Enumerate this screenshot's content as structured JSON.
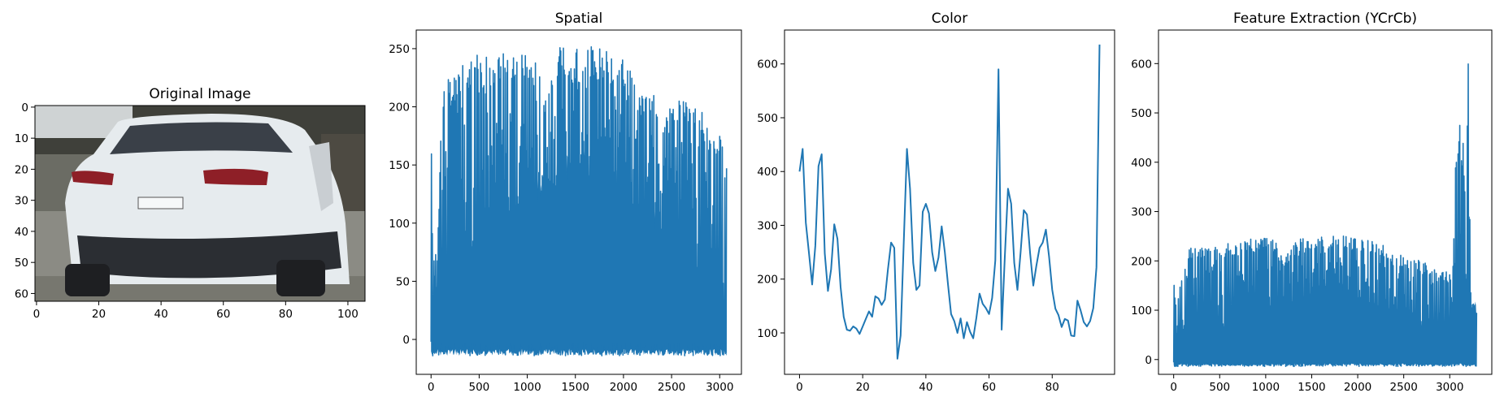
{
  "figure": {
    "line_color": "#1f77b4",
    "axes_color": "#000000",
    "background": "#ffffff"
  },
  "chart_data": [
    {
      "type": "image",
      "title": "Original Image",
      "image_description": "rear view of a white sedan on a road with a dark curb in the background",
      "xlim": [
        -0.5,
        105.5
      ],
      "ylim": [
        62.5,
        -0.5
      ],
      "xticks": [
        0,
        20,
        40,
        60,
        80,
        100
      ],
      "yticks": [
        0,
        10,
        20,
        30,
        40,
        50,
        60
      ],
      "grid": false
    },
    {
      "type": "line",
      "title": "Spatial",
      "xlim": [
        -154,
        3226
      ],
      "ylim": [
        -30,
        266
      ],
      "xticks": [
        0,
        500,
        1000,
        1500,
        2000,
        2500,
        3000
      ],
      "yticks": [
        0,
        50,
        100,
        150,
        200,
        250
      ],
      "series_x_range": [
        0,
        3071
      ],
      "series_min": -20,
      "series_max": 252,
      "typical_floor": [
        -15,
        10
      ],
      "grid": false,
      "note_values": "3072 dense points; envelope sampled below",
      "envelope": {
        "x": [
          0,
          30,
          60,
          120,
          200,
          300,
          400,
          500,
          600,
          700,
          800,
          900,
          1000,
          1100,
          1200,
          1300,
          1400,
          1500,
          1600,
          1700,
          1800,
          1900,
          2000,
          2100,
          2200,
          2300,
          2400,
          2500,
          2600,
          2700,
          2800,
          2900,
          3000,
          3071
        ],
        "high": [
          168,
          120,
          60,
          222,
          225,
          240,
          243,
          245,
          244,
          245,
          248,
          250,
          250,
          245,
          205,
          250,
          252,
          252,
          252,
          252,
          252,
          245,
          240,
          228,
          215,
          212,
          198,
          200,
          212,
          205,
          200,
          180,
          177,
          148
        ],
        "body": [
          30,
          25,
          40,
          45,
          55,
          60,
          70,
          80,
          90,
          95,
          100,
          105,
          110,
          115,
          120,
          130,
          135,
          140,
          140,
          140,
          135,
          130,
          120,
          110,
          100,
          95,
          85,
          75,
          65,
          55,
          45,
          35,
          20,
          10
        ]
      }
    },
    {
      "type": "line",
      "title": "Color",
      "xlim": [
        -4.75,
        99.75
      ],
      "ylim": [
        23,
        663
      ],
      "xticks": [
        0,
        20,
        40,
        60,
        80
      ],
      "yticks": [
        100,
        200,
        300,
        400,
        500,
        600
      ],
      "grid": false,
      "x": [
        0,
        1,
        2,
        3,
        4,
        5,
        6,
        7,
        8,
        9,
        10,
        11,
        12,
        13,
        14,
        15,
        16,
        17,
        18,
        19,
        20,
        21,
        22,
        23,
        24,
        25,
        26,
        27,
        28,
        29,
        30,
        31,
        32,
        33,
        34,
        35,
        36,
        37,
        38,
        39,
        40,
        41,
        42,
        43,
        44,
        45,
        46,
        47,
        48,
        49,
        50,
        51,
        52,
        53,
        54,
        55,
        56,
        57,
        58,
        59,
        60,
        61,
        62,
        63,
        64,
        65,
        66,
        67,
        68,
        69,
        70,
        71,
        72,
        73,
        74,
        75,
        76,
        77,
        78,
        79,
        80,
        81,
        82,
        83,
        84,
        85,
        86,
        87,
        88,
        89,
        90,
        91,
        92,
        93,
        94,
        95
      ],
      "values": [
        400,
        442,
        305,
        248,
        190,
        262,
        410,
        432,
        248,
        178,
        218,
        302,
        275,
        185,
        130,
        106,
        104,
        112,
        108,
        98,
        112,
        126,
        140,
        130,
        168,
        164,
        152,
        162,
        218,
        268,
        258,
        52,
        95,
        270,
        442,
        368,
        230,
        180,
        188,
        325,
        340,
        322,
        250,
        215,
        240,
        298,
        250,
        190,
        135,
        122,
        100,
        127,
        90,
        120,
        102,
        90,
        128,
        173,
        154,
        146,
        135,
        165,
        235,
        590,
        106,
        242,
        368,
        340,
        230,
        180,
        250,
        328,
        320,
        248,
        188,
        225,
        258,
        268,
        292,
        242,
        180,
        145,
        133,
        111,
        126,
        123,
        95,
        94,
        160,
        142,
        120,
        112,
        122,
        146,
        222,
        636
      ]
    },
    {
      "type": "line",
      "title": "Feature Extraction (YCrCb)",
      "xlim": [
        -165,
        3457
      ],
      "ylim": [
        -30,
        668
      ],
      "xticks": [
        0,
        500,
        1000,
        1500,
        2000,
        2500,
        3000
      ],
      "yticks": [
        0,
        100,
        200,
        300,
        400,
        500,
        600
      ],
      "grid": false,
      "series_x_range": [
        0,
        3292
      ],
      "note_values": "3293 dense points; envelope sampled below",
      "envelope": {
        "x": [
          0,
          30,
          60,
          150,
          300,
          450,
          600,
          750,
          900,
          1000,
          1100,
          1200,
          1350,
          1500,
          1650,
          1800,
          1950,
          2100,
          2250,
          2400,
          2550,
          2700,
          2850,
          2950,
          3030,
          3070,
          3100,
          3130,
          3160,
          3180,
          3200,
          3230,
          3260,
          3292
        ],
        "high": [
          168,
          110,
          150,
          225,
          230,
          238,
          240,
          242,
          248,
          250,
          245,
          205,
          250,
          252,
          252,
          252,
          250,
          245,
          238,
          218,
          208,
          200,
          190,
          180,
          172,
          445,
          442,
          590,
          340,
          345,
          630,
          110,
          125,
          95
        ],
        "body": [
          20,
          15,
          25,
          35,
          45,
          55,
          65,
          75,
          85,
          95,
          100,
          105,
          115,
          125,
          130,
          130,
          125,
          115,
          105,
          95,
          80,
          65,
          45,
          25,
          10,
          120,
          150,
          180,
          150,
          120,
          140,
          100,
          100,
          90
        ]
      }
    }
  ]
}
